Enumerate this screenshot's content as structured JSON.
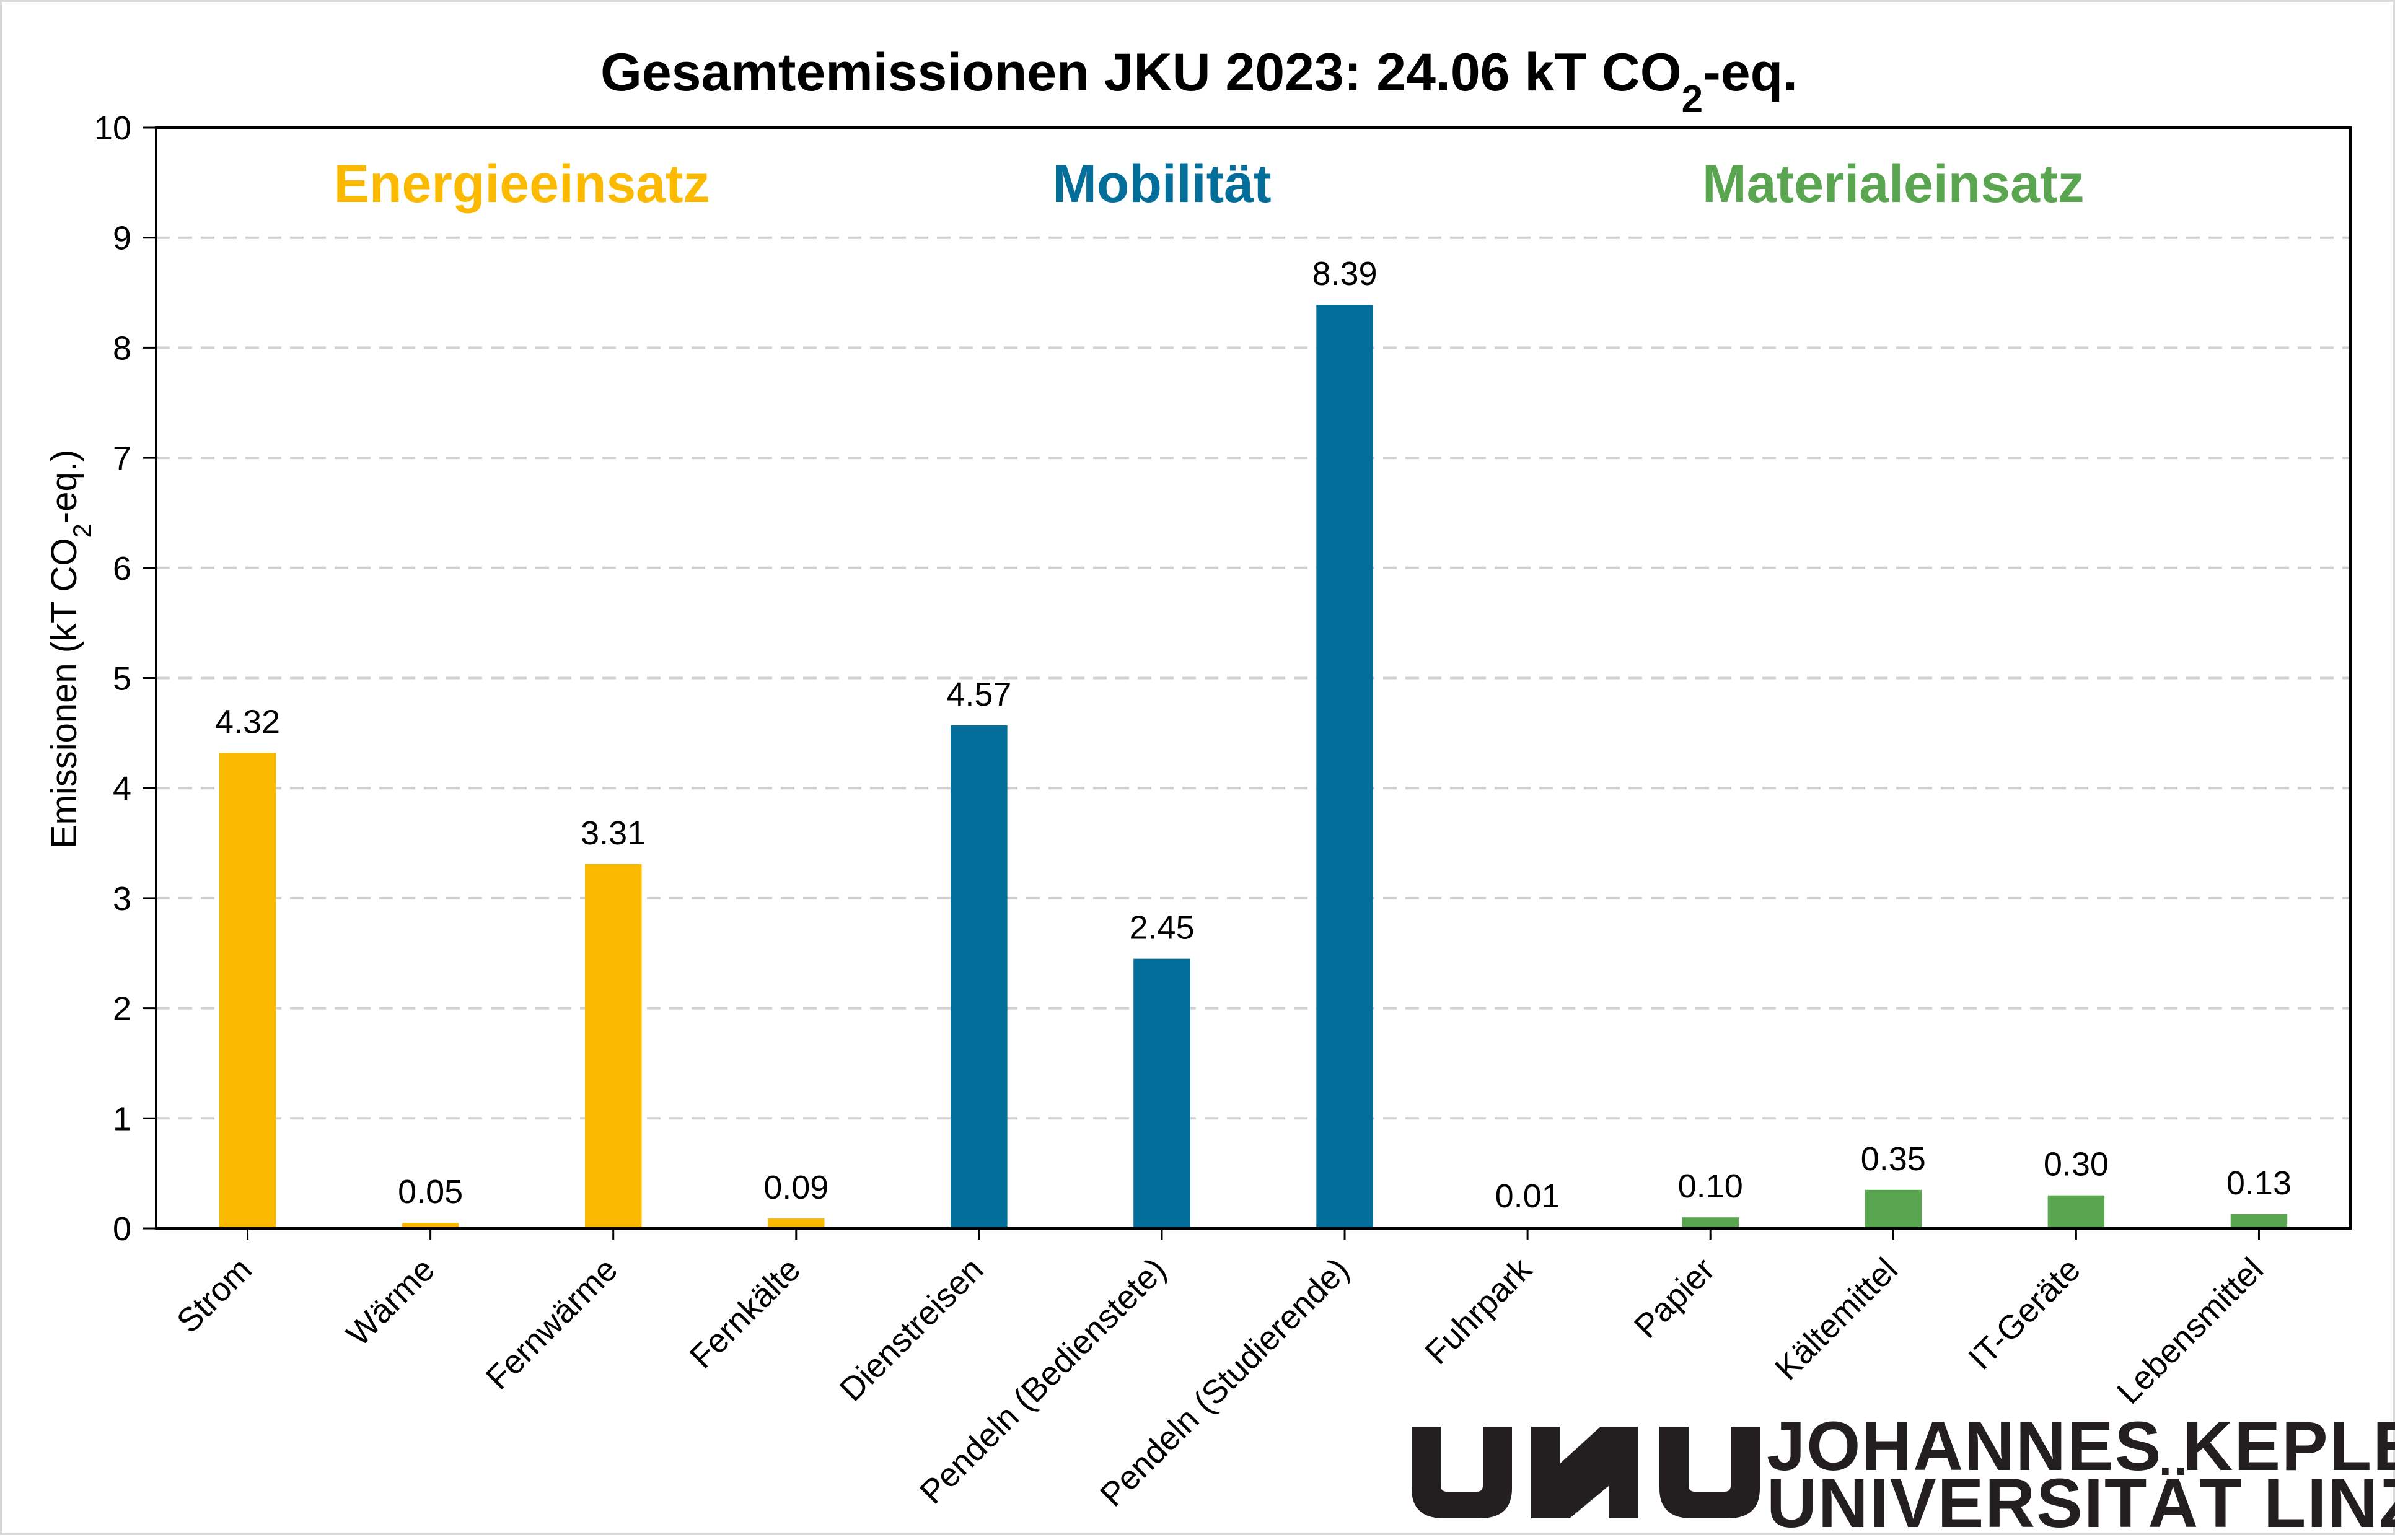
{
  "chart_data": {
    "type": "bar",
    "title": {
      "main": "Gesamtemissionen JKU 2023: 24.06 kT CO",
      "sub": "2",
      "end": "-eq."
    },
    "ylabel": {
      "main": "Emissionen (kT CO",
      "sub": "2",
      "end": "-eq.)"
    },
    "xlabel": "",
    "ylim": [
      0,
      10
    ],
    "yticks": [
      "0",
      "1",
      "2",
      "3",
      "4",
      "5",
      "6",
      "7",
      "8",
      "9",
      "10"
    ],
    "grid": true,
    "categories": [
      "Strom",
      "Wärme",
      "Fernwärme",
      "Fernkälte",
      "Dienstreisen",
      "Pendeln (Bedienstete)",
      "Pendeln (Studierende)",
      "Fuhrpark",
      "Papier",
      "Kältemittel",
      "IT-Geräte",
      "Lebensmittel"
    ],
    "values": [
      4.32,
      0.05,
      3.31,
      0.09,
      4.57,
      2.45,
      8.39,
      0.01,
      0.1,
      0.35,
      0.3,
      0.13
    ],
    "data_labels": [
      "4.32",
      "0.05",
      "3.31",
      "0.09",
      "4.57",
      "2.45",
      "8.39",
      "0.01",
      "0.10",
      "0.35",
      "0.30",
      "0.13"
    ],
    "bar_groups": [
      0,
      0,
      0,
      0,
      1,
      1,
      1,
      2,
      2,
      2,
      2,
      2
    ],
    "groups": [
      {
        "label": "Energieeinsatz",
        "color": "#fbba00"
      },
      {
        "label": "Mobilität",
        "color": "#046e9b"
      },
      {
        "label": "Materialeinsatz",
        "color": "#5aa54f"
      }
    ]
  },
  "logo": {
    "mark": "JKU",
    "line1": "JOHANNES KEPLER",
    "line2": "UNIVERSITÄT LINZ"
  }
}
